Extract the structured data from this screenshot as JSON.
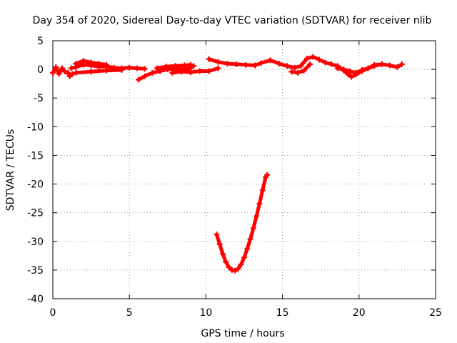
{
  "chart_data": {
    "type": "scatter",
    "title": "Day 354 of 2020, Sidereal Day-to-day VTEC variation (SDTVAR) for receiver nlib",
    "xlabel": "GPS time / hours",
    "ylabel": "SDTVAR / TECUs",
    "xlim": [
      0,
      25
    ],
    "ylim": [
      -40,
      5
    ],
    "xticks": [
      "0",
      "5",
      "10",
      "15",
      "20",
      "25"
    ],
    "yticks": [
      "5",
      "0",
      "-5",
      "-10",
      "-15",
      "-20",
      "-25",
      "-30",
      "-35",
      "-40"
    ],
    "grid": true,
    "series_color": "#ff0000",
    "series": [
      {
        "name": "trace-1",
        "points": [
          [
            0.0,
            -0.6
          ],
          [
            0.2,
            0.4
          ],
          [
            0.4,
            -0.8
          ],
          [
            0.6,
            0.2
          ],
          [
            0.8,
            -0.4
          ],
          [
            1.0,
            -0.6
          ],
          [
            1.1,
            -1.2
          ],
          [
            1.3,
            -0.8
          ]
        ]
      },
      {
        "name": "trace-2",
        "points": [
          [
            1.2,
            0.2
          ],
          [
            1.5,
            0.4
          ],
          [
            2.0,
            0.8
          ],
          [
            2.5,
            0.7
          ],
          [
            3.0,
            0.5
          ],
          [
            3.5,
            0.5
          ],
          [
            4.0,
            0.3
          ],
          [
            4.5,
            0.2
          ],
          [
            5.0,
            0.3
          ],
          [
            5.5,
            0.2
          ],
          [
            6.0,
            0.1
          ]
        ]
      },
      {
        "name": "trace-3",
        "points": [
          [
            1.5,
            1.0
          ],
          [
            2.0,
            1.5
          ],
          [
            2.5,
            1.2
          ],
          [
            3.0,
            1.0
          ],
          [
            3.5,
            0.8
          ]
        ]
      },
      {
        "name": "trace-4",
        "points": [
          [
            1.5,
            -0.6
          ],
          [
            2.5,
            -0.4
          ],
          [
            3.5,
            -0.2
          ],
          [
            4.5,
            -0.1
          ]
        ]
      },
      {
        "name": "trace-5",
        "points": [
          [
            5.6,
            -1.8
          ],
          [
            6.0,
            -1.2
          ],
          [
            6.5,
            -0.6
          ],
          [
            7.0,
            -0.3
          ],
          [
            7.5,
            0.0
          ],
          [
            8.0,
            0.1
          ],
          [
            8.5,
            0.0
          ],
          [
            9.0,
            0.2
          ]
        ]
      },
      {
        "name": "trace-6",
        "points": [
          [
            6.8,
            0.2
          ],
          [
            7.4,
            0.5
          ],
          [
            8.0,
            0.6
          ],
          [
            8.6,
            0.7
          ],
          [
            9.0,
            0.8
          ],
          [
            9.2,
            0.6
          ]
        ]
      },
      {
        "name": "trace-7",
        "points": [
          [
            7.8,
            -0.6
          ],
          [
            8.4,
            -0.4
          ],
          [
            9.0,
            -0.5
          ],
          [
            9.6,
            -0.3
          ],
          [
            10.2,
            -0.3
          ],
          [
            10.8,
            0.2
          ]
        ]
      },
      {
        "name": "trace-8",
        "points": [
          [
            10.2,
            1.8
          ],
          [
            10.8,
            1.3
          ],
          [
            11.4,
            1.0
          ],
          [
            12.0,
            0.9
          ],
          [
            12.6,
            0.8
          ],
          [
            13.2,
            0.7
          ],
          [
            13.6,
            1.1
          ],
          [
            14.2,
            1.6
          ],
          [
            14.8,
            1.0
          ],
          [
            15.3,
            0.6
          ],
          [
            15.8,
            0.3
          ],
          [
            16.2,
            0.6
          ],
          [
            16.6,
            1.9
          ],
          [
            17.0,
            2.2
          ],
          [
            17.4,
            1.7
          ],
          [
            17.8,
            1.2
          ],
          [
            18.2,
            0.9
          ],
          [
            18.6,
            0.6
          ],
          [
            19.0,
            -0.2
          ],
          [
            19.3,
            -0.9
          ],
          [
            19.5,
            -1.3
          ],
          [
            19.8,
            -0.9
          ],
          [
            20.2,
            -0.3
          ],
          [
            20.6,
            0.2
          ],
          [
            21.0,
            0.8
          ],
          [
            21.5,
            0.9
          ],
          [
            22.0,
            0.7
          ],
          [
            22.5,
            0.4
          ],
          [
            22.8,
            0.9
          ]
        ]
      },
      {
        "name": "trace-9",
        "points": [
          [
            15.6,
            -0.4
          ],
          [
            16.0,
            -0.6
          ],
          [
            16.4,
            -0.2
          ],
          [
            16.8,
            0.9
          ]
        ]
      },
      {
        "name": "trace-10",
        "points": [
          [
            18.6,
            0.2
          ],
          [
            19.0,
            0.0
          ],
          [
            19.4,
            -0.3
          ],
          [
            19.8,
            -0.6
          ],
          [
            20.2,
            -0.1
          ],
          [
            20.6,
            0.2
          ],
          [
            21.0,
            0.6
          ],
          [
            21.5,
            0.9
          ]
        ]
      },
      {
        "name": "trace-11",
        "points": [
          [
            10.7,
            -28.8
          ],
          [
            10.9,
            -30.5
          ],
          [
            11.1,
            -32.2
          ],
          [
            11.3,
            -33.6
          ],
          [
            11.5,
            -34.5
          ],
          [
            11.7,
            -35.0
          ],
          [
            11.9,
            -35.1
          ],
          [
            12.1,
            -34.8
          ],
          [
            12.3,
            -34.0
          ],
          [
            12.5,
            -32.8
          ],
          [
            12.7,
            -31.3
          ],
          [
            12.9,
            -29.6
          ],
          [
            13.1,
            -27.7
          ],
          [
            13.3,
            -25.6
          ],
          [
            13.5,
            -23.4
          ],
          [
            13.7,
            -21.1
          ],
          [
            13.9,
            -18.8
          ],
          [
            14.0,
            -18.4
          ]
        ]
      }
    ]
  }
}
